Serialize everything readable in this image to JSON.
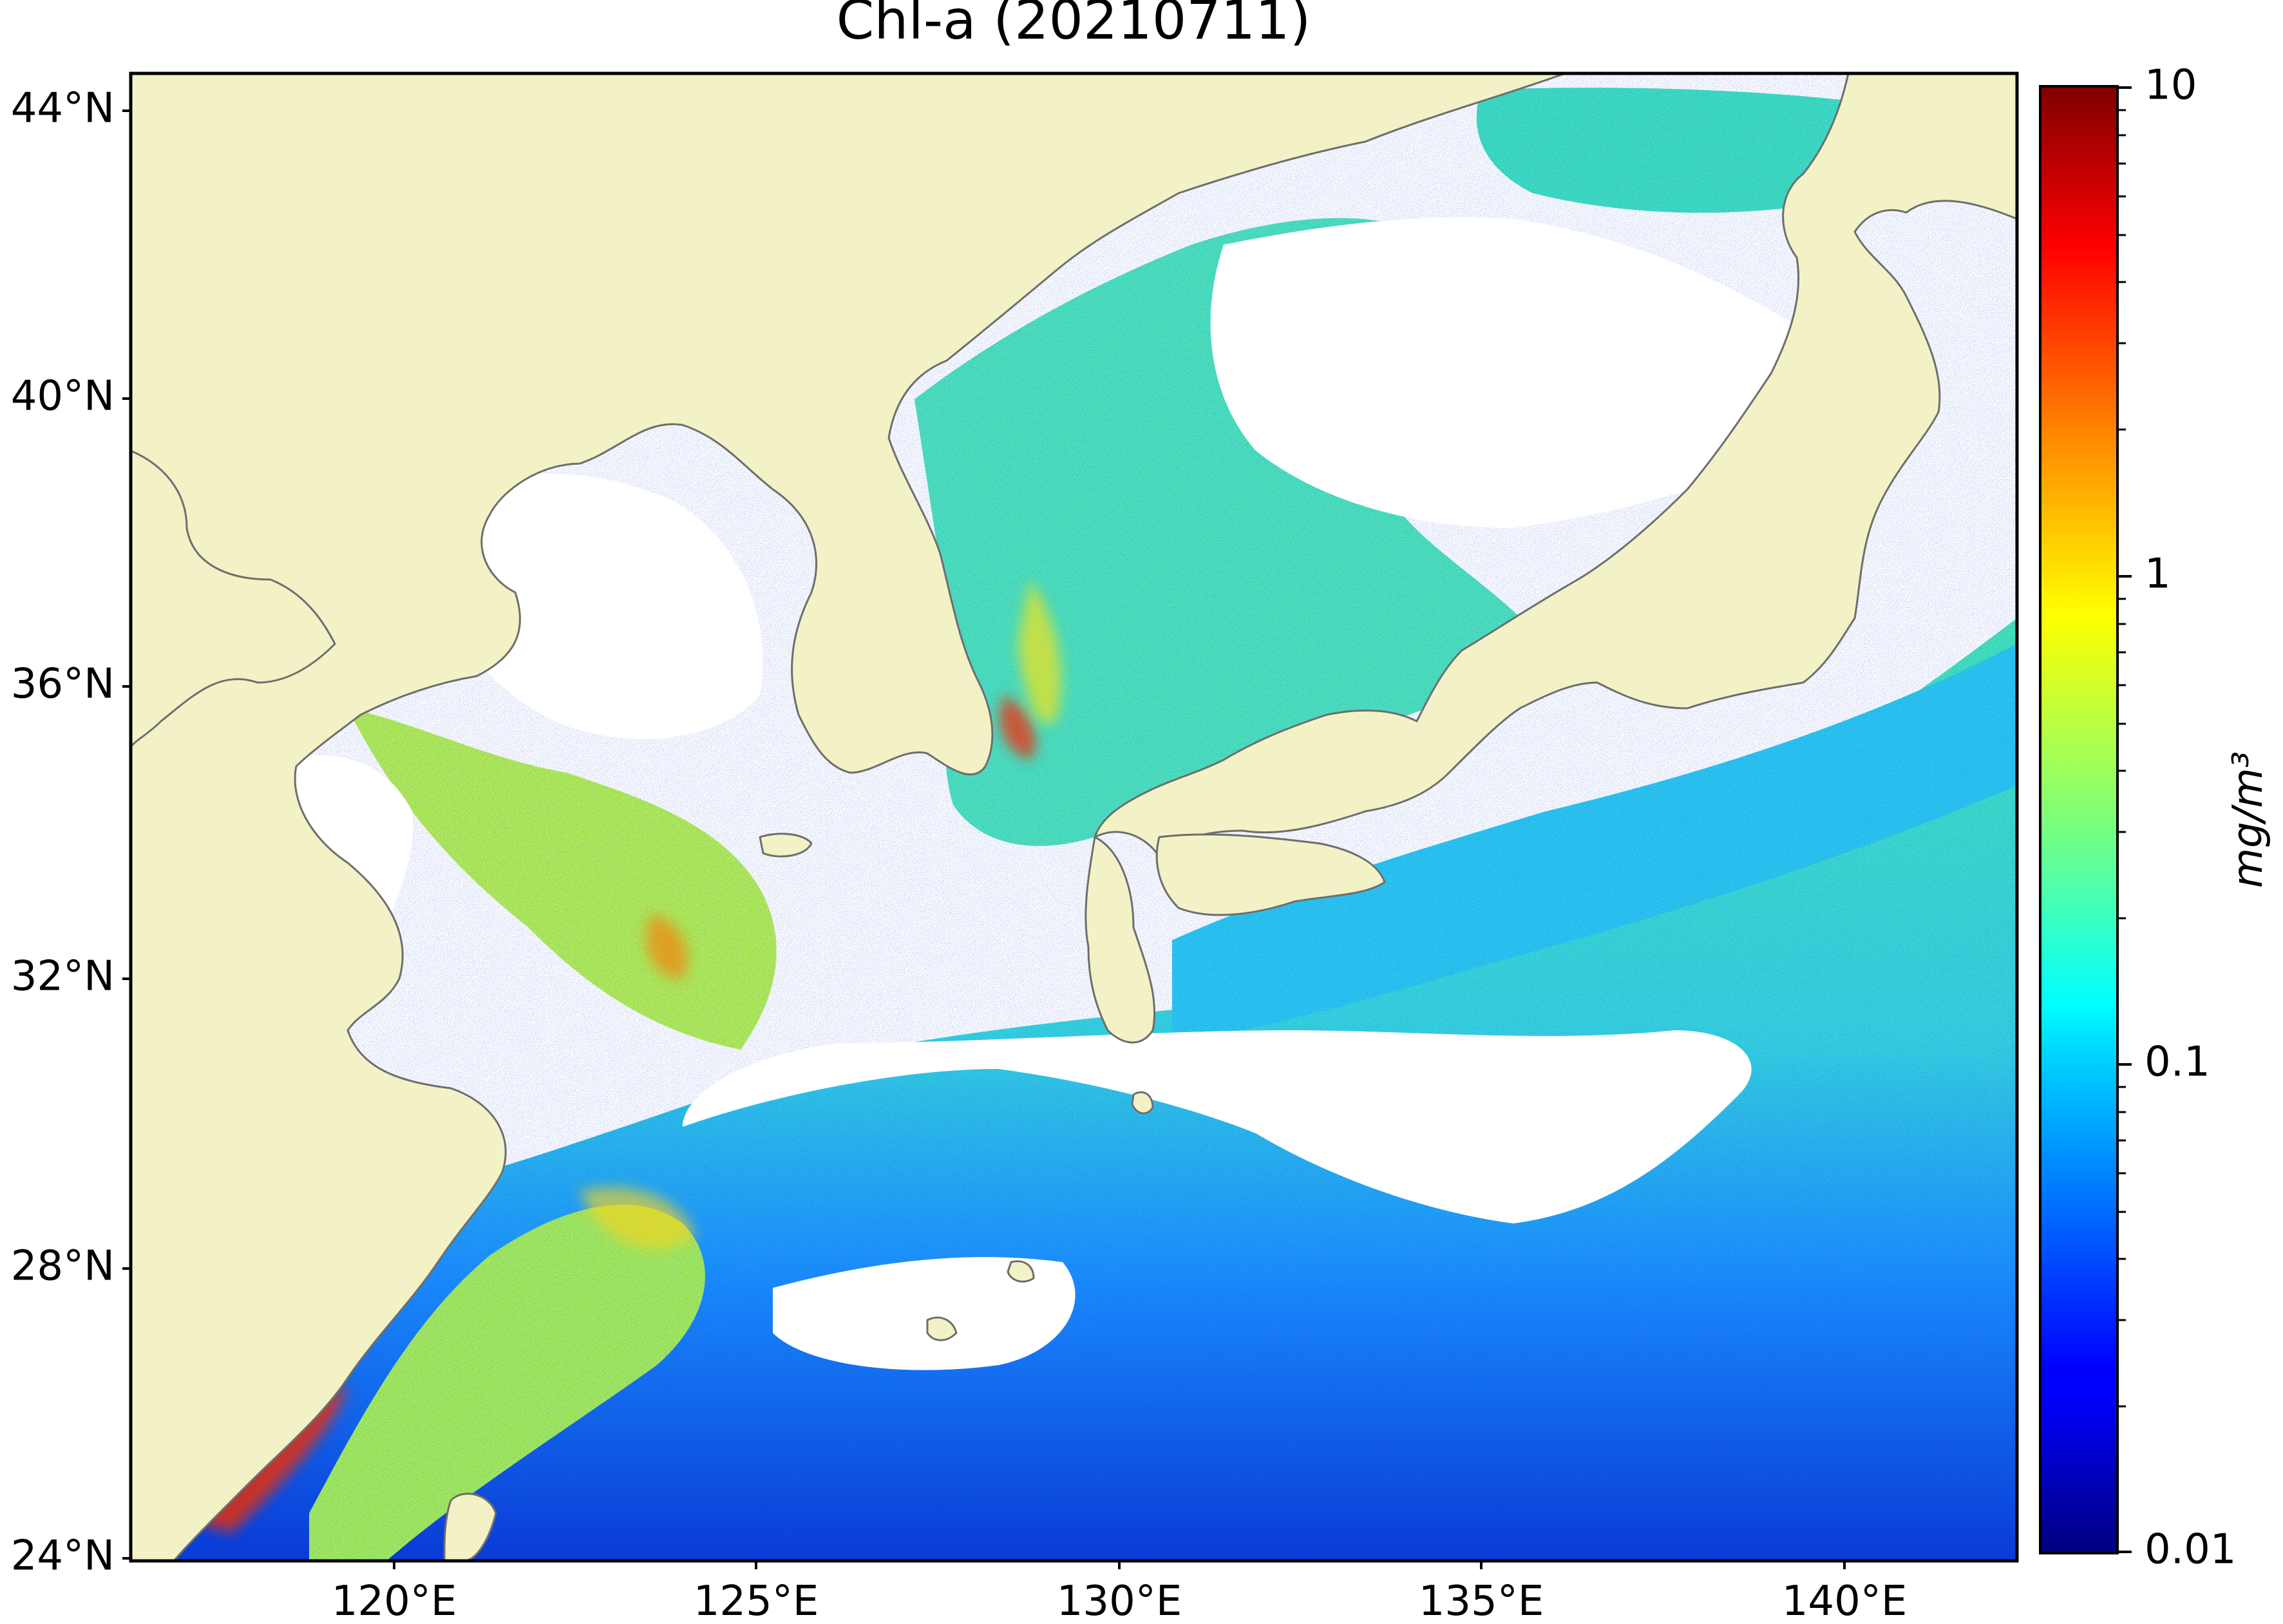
{
  "map": {
    "title": "Chl-a (20210711)",
    "extent": {
      "lon": [
        117,
        143
      ],
      "lat": [
        23.5,
        44.5
      ]
    },
    "lat_ticks": [
      {
        "value": 44,
        "label": "44°N"
      },
      {
        "value": 40,
        "label": "40°N"
      },
      {
        "value": 36,
        "label": "36°N"
      },
      {
        "value": 32,
        "label": "32°N"
      },
      {
        "value": 28,
        "label": "28°N"
      },
      {
        "value": 24,
        "label": "24°N"
      }
    ],
    "lon_ticks": [
      {
        "value": 120,
        "label": "120°E"
      },
      {
        "value": 125,
        "label": "125°E"
      },
      {
        "value": 130,
        "label": "130°E"
      },
      {
        "value": 135,
        "label": "135°E"
      },
      {
        "value": 140,
        "label": "140°E"
      }
    ],
    "colors": {
      "land": "#f2f2c6",
      "cloud_nodata": "#ffffff",
      "coastline": "#6e6e6e",
      "frame": "#000000"
    }
  },
  "colorbar": {
    "scale": "log",
    "range": [
      0.01,
      10
    ],
    "colormap": "jet",
    "units": "mg/m³",
    "ticks": [
      {
        "value": 10,
        "label": "10"
      },
      {
        "value": 1,
        "label": "1"
      },
      {
        "value": 0.1,
        "label": "0.1"
      },
      {
        "value": 0.01,
        "label": "0.01"
      }
    ]
  }
}
